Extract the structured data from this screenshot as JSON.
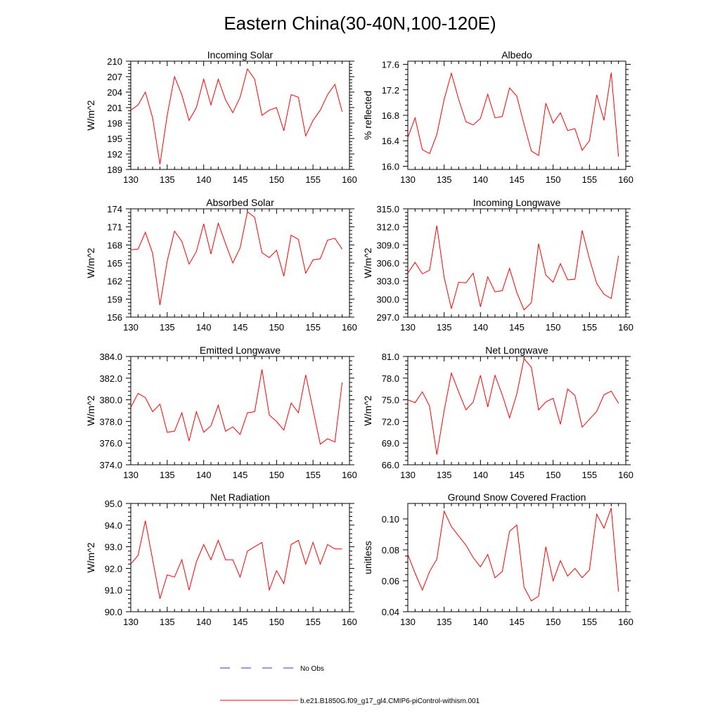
{
  "title": "Eastern China(30-40N,100-120E)",
  "legend": {
    "obs_label": "No Obs",
    "model_label": "b.e21.B1850G.f09_g17_gl4.CMIP6-piControl-withism.001",
    "obs_color": "#3333cc",
    "model_color": "#ff0000"
  },
  "chart_data": [
    {
      "type": "line",
      "title": "Incoming Solar",
      "ylabel": "W/m^2",
      "xlim": [
        130,
        160
      ],
      "ylim": [
        189,
        210
      ],
      "yticks": [
        "189",
        "192",
        "195",
        "198",
        "201",
        "204",
        "207",
        "210"
      ],
      "xticks": [
        "130",
        "135",
        "140",
        "145",
        "150",
        "155",
        "160"
      ],
      "x": [
        130,
        131,
        132,
        133,
        134,
        135,
        136,
        137,
        138,
        139,
        140,
        141,
        142,
        143,
        144,
        145,
        146,
        147,
        148,
        149,
        150,
        151,
        152,
        153,
        154,
        155,
        156,
        157,
        158,
        159
      ],
      "series": [
        {
          "values": [
            200.5,
            201.5,
            204,
            199,
            190,
            199.5,
            207,
            203.5,
            198.5,
            201,
            206.5,
            201.5,
            206.5,
            202.5,
            200,
            203,
            208.5,
            206.5,
            199.5,
            200.5,
            201,
            196.5,
            203.5,
            203,
            195.5,
            198.5,
            200.5,
            203.5,
            205.5,
            200.2
          ]
        }
      ]
    },
    {
      "type": "line",
      "title": "Albedo",
      "ylabel": "% reflected",
      "xlim": [
        130,
        160
      ],
      "ylim": [
        15.95,
        17.65
      ],
      "yticks": [
        "16.0",
        "16.4",
        "16.8",
        "17.2",
        "17.6"
      ],
      "xticks": [
        "130",
        "135",
        "140",
        "145",
        "150",
        "155",
        "160"
      ],
      "x": [
        130,
        131,
        132,
        133,
        134,
        135,
        136,
        137,
        138,
        139,
        140,
        141,
        142,
        143,
        144,
        145,
        146,
        147,
        148,
        149,
        150,
        151,
        152,
        153,
        154,
        155,
        156,
        157,
        158,
        159
      ],
      "series": [
        {
          "values": [
            16.45,
            16.76,
            16.26,
            16.2,
            16.5,
            17.05,
            17.46,
            17.05,
            16.7,
            16.65,
            16.75,
            17.13,
            16.76,
            16.78,
            17.23,
            17.1,
            16.66,
            16.24,
            16.17,
            16.99,
            16.68,
            16.84,
            16.56,
            16.59,
            16.25,
            16.4,
            17.12,
            16.72,
            17.47,
            16.15
          ]
        }
      ]
    },
    {
      "type": "line",
      "title": "Absorbed Solar",
      "ylabel": "W/m^2",
      "xlim": [
        130,
        160
      ],
      "ylim": [
        156,
        174
      ],
      "yticks": [
        "156",
        "159",
        "162",
        "165",
        "168",
        "171",
        "174"
      ],
      "xticks": [
        "130",
        "135",
        "140",
        "145",
        "150",
        "155",
        "160"
      ],
      "x": [
        130,
        131,
        132,
        133,
        134,
        135,
        136,
        137,
        138,
        139,
        140,
        141,
        142,
        143,
        144,
        145,
        146,
        147,
        148,
        149,
        150,
        151,
        152,
        153,
        154,
        155,
        156,
        157,
        158,
        159
      ],
      "series": [
        {
          "values": [
            167.2,
            167.3,
            170.1,
            166.6,
            158,
            165.3,
            170.3,
            168.6,
            164.8,
            166.9,
            171.5,
            166.5,
            171.6,
            168.2,
            165,
            167.5,
            173.5,
            172.6,
            166.7,
            165.9,
            167.1,
            162.8,
            169.6,
            168.9,
            163.3,
            165.5,
            165.7,
            168.8,
            169.1,
            167.3
          ]
        }
      ]
    },
    {
      "type": "line",
      "title": "Incoming Longwave",
      "ylabel": "W/m^2",
      "xlim": [
        130,
        160
      ],
      "ylim": [
        297,
        315
      ],
      "yticks": [
        "297.0",
        "300.0",
        "303.0",
        "306.0",
        "309.0",
        "312.0",
        "315.0"
      ],
      "xticks": [
        "130",
        "135",
        "140",
        "145",
        "150",
        "155",
        "160"
      ],
      "x": [
        130,
        131,
        132,
        133,
        134,
        135,
        136,
        137,
        138,
        139,
        140,
        141,
        142,
        143,
        144,
        145,
        146,
        147,
        148,
        149,
        150,
        151,
        152,
        153,
        154,
        155,
        156,
        157,
        158,
        159
      ],
      "series": [
        {
          "values": [
            304.3,
            306.1,
            304.2,
            304.8,
            312.2,
            303.6,
            298.4,
            302.8,
            302.7,
            304.3,
            298.7,
            303.7,
            301.2,
            301.4,
            305.1,
            301.1,
            298.2,
            299.4,
            309.2,
            304,
            302.8,
            305.9,
            303.2,
            303.3,
            311.4,
            306.7,
            302.6,
            300.8,
            300.1,
            307.2
          ]
        }
      ]
    },
    {
      "type": "line",
      "title": "Emitted Longwave",
      "ylabel": "W/m^2",
      "xlim": [
        130,
        160
      ],
      "ylim": [
        374,
        384
      ],
      "yticks": [
        "374.0",
        "376.0",
        "378.0",
        "380.0",
        "382.0",
        "384.0"
      ],
      "xticks": [
        "130",
        "135",
        "140",
        "145",
        "150",
        "155",
        "160"
      ],
      "x": [
        130,
        131,
        132,
        133,
        134,
        135,
        136,
        137,
        138,
        139,
        140,
        141,
        142,
        143,
        144,
        145,
        146,
        147,
        148,
        149,
        150,
        151,
        152,
        153,
        154,
        155,
        156,
        157,
        158,
        159
      ],
      "series": [
        {
          "values": [
            379.3,
            380.6,
            380.2,
            378.9,
            379.6,
            377,
            377.1,
            378.8,
            376.2,
            378.9,
            377,
            377.6,
            379.5,
            377.1,
            377.5,
            376.8,
            378.8,
            378.9,
            382.8,
            378.6,
            378,
            377.2,
            379.7,
            378.8,
            382.3,
            379.1,
            375.9,
            376.4,
            376.1,
            381.6
          ]
        }
      ]
    },
    {
      "type": "line",
      "title": "Net Longwave",
      "ylabel": "W/m^2",
      "xlim": [
        130,
        160
      ],
      "ylim": [
        66,
        81
      ],
      "yticks": [
        "66.0",
        "69.0",
        "72.0",
        "75.0",
        "78.0",
        "81.0"
      ],
      "xticks": [
        "130",
        "135",
        "140",
        "145",
        "150",
        "155",
        "160"
      ],
      "x": [
        130,
        131,
        132,
        133,
        134,
        135,
        136,
        137,
        138,
        139,
        140,
        141,
        142,
        143,
        144,
        145,
        146,
        147,
        148,
        149,
        150,
        151,
        152,
        153,
        154,
        155,
        156,
        157,
        158,
        159
      ],
      "series": [
        {
          "values": [
            75,
            74.6,
            76.1,
            74.1,
            67.4,
            73.5,
            78.7,
            76.1,
            73.6,
            74.7,
            78.4,
            74,
            78.4,
            75.7,
            72.5,
            75.8,
            80.7,
            79.5,
            73.6,
            74.7,
            75.2,
            71.6,
            76.5,
            75.6,
            71.2,
            72.3,
            73.4,
            75.7,
            76.2,
            74.5
          ]
        }
      ]
    },
    {
      "type": "line",
      "title": "Net Radiation",
      "ylabel": "W/m^2",
      "xlim": [
        130,
        160
      ],
      "ylim": [
        90,
        95
      ],
      "yticks": [
        "90.0",
        "91.0",
        "92.0",
        "93.0",
        "94.0",
        "95.0"
      ],
      "xticks": [
        "130",
        "135",
        "140",
        "145",
        "150",
        "155",
        "160"
      ],
      "x": [
        130,
        131,
        132,
        133,
        134,
        135,
        136,
        137,
        138,
        139,
        140,
        141,
        142,
        143,
        144,
        145,
        146,
        147,
        148,
        149,
        150,
        151,
        152,
        153,
        154,
        155,
        156,
        157,
        158,
        159
      ],
      "series": [
        {
          "values": [
            92.2,
            92.6,
            94.2,
            92.4,
            90.6,
            91.7,
            91.6,
            92.4,
            91,
            92.3,
            93.1,
            92.4,
            93.3,
            92.4,
            92.4,
            91.6,
            92.8,
            93.0,
            93.2,
            91,
            91.9,
            91.3,
            93.1,
            93.3,
            92.2,
            93.2,
            92.2,
            93.1,
            92.9,
            92.9
          ]
        }
      ]
    },
    {
      "type": "line",
      "title": "Ground Snow Covered Fraction",
      "ylabel": "unitless",
      "xlim": [
        130,
        160
      ],
      "ylim": [
        0.04,
        0.11
      ],
      "yticks": [
        "0.04",
        "0.06",
        "0.08",
        "0.10"
      ],
      "xticks": [
        "130",
        "135",
        "140",
        "145",
        "150",
        "155",
        "160"
      ],
      "x": [
        130,
        131,
        132,
        133,
        134,
        135,
        136,
        137,
        138,
        139,
        140,
        141,
        142,
        143,
        144,
        145,
        146,
        147,
        148,
        149,
        150,
        151,
        152,
        153,
        154,
        155,
        156,
        157,
        158,
        159
      ],
      "series": [
        {
          "values": [
            0.077,
            0.065,
            0.054,
            0.066,
            0.074,
            0.105,
            0.095,
            0.089,
            0.083,
            0.075,
            0.069,
            0.077,
            0.062,
            0.066,
            0.092,
            0.096,
            0.056,
            0.047,
            0.05,
            0.082,
            0.06,
            0.073,
            0.063,
            0.068,
            0.062,
            0.067,
            0.103,
            0.094,
            0.107,
            0.053
          ]
        }
      ]
    }
  ]
}
